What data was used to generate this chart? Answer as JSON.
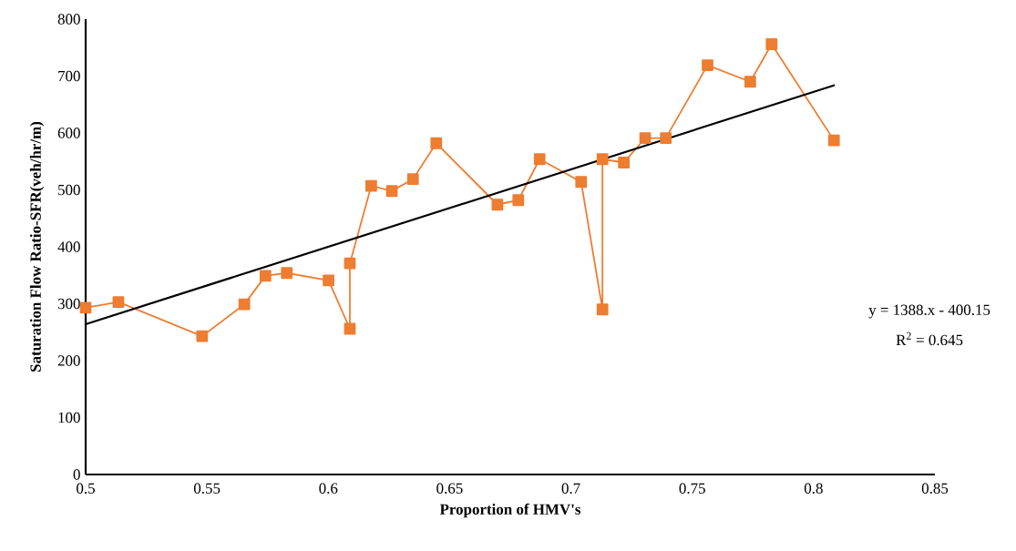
{
  "chart_data": {
    "type": "line",
    "xlabel": "Proportion of HMV's",
    "ylabel": "Saturation Flow Ratio-SFR(veh/hr/m)",
    "xlim": [
      0.5,
      0.85
    ],
    "ylim": [
      0,
      800
    ],
    "xticks": [
      0.5,
      0.55,
      0.6,
      0.65,
      0.7,
      0.75,
      0.8,
      0.85
    ],
    "yticks": [
      0,
      100,
      200,
      300,
      400,
      500,
      600,
      700,
      800
    ],
    "grid": false,
    "line_style": "solid",
    "series": [
      {
        "color": "#ed7d31",
        "marker": "square",
        "x": [
          0.5,
          0.5135,
          0.548,
          0.5654,
          0.5741,
          0.5829,
          0.6001,
          0.6089,
          0.6089,
          0.6177,
          0.6262,
          0.6349,
          0.6445,
          0.6697,
          0.6783,
          0.6871,
          0.7042,
          0.713,
          0.713,
          0.7218,
          0.7306,
          0.7391,
          0.7563,
          0.7739,
          0.7827,
          0.8084
        ],
        "values": [
          293,
          303,
          243,
          299,
          349,
          354,
          341,
          256,
          371,
          507,
          498,
          519,
          582,
          474,
          482,
          554,
          514,
          290,
          554,
          548,
          591,
          591,
          719,
          690,
          756,
          587
        ]
      },
      {
        "color": "#000000",
        "marker": "none",
        "x": [
          0.5,
          0.8087
        ],
        "values": [
          264,
          684
        ]
      }
    ],
    "annotations": [
      "y = 1388.x - 400.15",
      "R$^{2}$ = 0.645"
    ]
  }
}
